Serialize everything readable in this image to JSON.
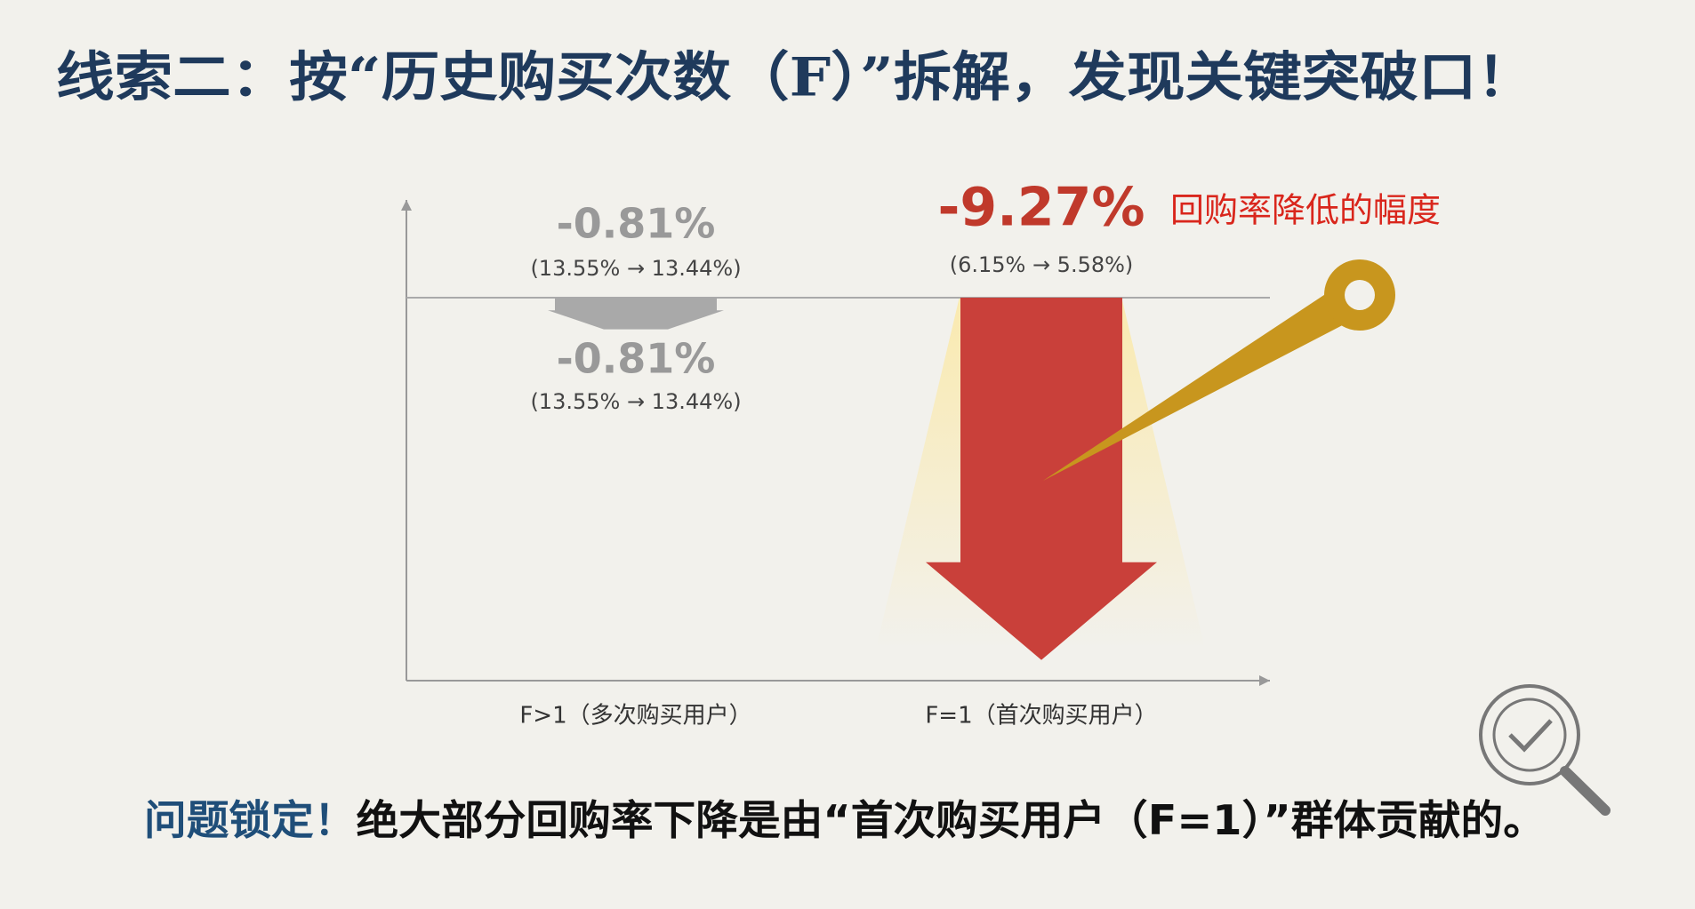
{
  "title": "线索二：按“历史购买次数（F）”拆解，发现关键突破口！",
  "chart_data": {
    "type": "bar",
    "categories": [
      "F>1（多次购买用户）",
      "F=1（首次购买用户）"
    ],
    "values": [
      -0.81,
      -9.27
    ],
    "value_labels": [
      "-0.81%",
      "-9.27%"
    ],
    "details": [
      "(13.55% → 13.44%)",
      "(6.15% → 5.58%)"
    ],
    "colors": [
      "#a9a9a9",
      "#c9403a"
    ],
    "label_colors": [
      "#999999",
      "#c0392b"
    ],
    "annotation": "回购率降低的幅度",
    "ylim": [
      -9.8,
      2.5
    ]
  },
  "conclusion": {
    "highlight": "问题锁定！",
    "text": "绝大部分回购率下降是由“首次购买用户（F=1）”群体贡献的。"
  }
}
